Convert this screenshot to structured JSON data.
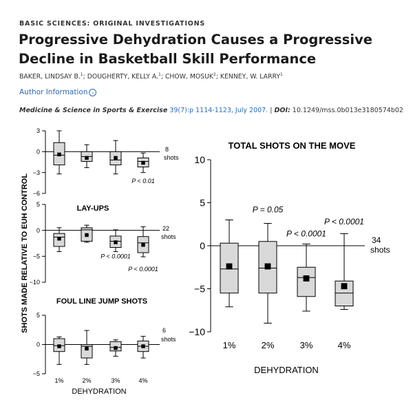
{
  "section_label": "BASIC SCIENCES: ORIGINAL INVESTIGATIONS",
  "title": "Progressive Dehydration Causes a Progressive Decline in Basketball Skill Performance",
  "authors": {
    "a1": "BAKER, LINDSAY B.",
    "a1_sup": "1",
    "sep1": "; ",
    "a2": "DOUGHERTY, KELLY A.",
    "a2_sup": "1",
    "sep2": "; ",
    "a3": "CHOW, MOSUK",
    "a3_sup": "2",
    "sep3": "; ",
    "a4": "KENNEY, W. LARRY",
    "a4_sup": "1"
  },
  "author_info_label": "Author Information",
  "citation": {
    "journal": "Medicine & Science in Sports & Exercise",
    "volume": "39(7):p 1114-1123, July 2007.",
    "sep": " | ",
    "doi_label": "DOI:",
    "doi": " 10.1249/mss.0b013e3180574b02"
  },
  "colors": {
    "link": "#2a6bb8",
    "box_fill": "#d9d9d9"
  },
  "chart_data": [
    {
      "type": "boxplot",
      "title": "",
      "shot_count": "8",
      "shot_unit": "shots",
      "ylim": [
        -6,
        3
      ],
      "yticks": [
        "3",
        "0",
        "−3",
        "−6"
      ],
      "ytick_values": [
        3,
        0,
        -3,
        -6
      ],
      "categories": [
        "1%",
        "2%",
        "3%",
        "4%"
      ],
      "boxes": [
        {
          "whislo": -3.2,
          "q1": -1.9,
          "med": -0.5,
          "q3": 1.3,
          "whishi": 3.0,
          "mean": -0.4
        },
        {
          "whislo": -2.3,
          "q1": -1.4,
          "med": -0.7,
          "q3": 0.0,
          "whishi": 1.0,
          "mean": -0.9
        },
        {
          "whislo": -3.2,
          "q1": -1.9,
          "med": -1.2,
          "q3": 0.0,
          "whishi": 1.6,
          "mean": -0.9
        },
        {
          "whislo": -3.0,
          "q1": -2.2,
          "med": -1.4,
          "q3": -0.9,
          "whishi": -0.2,
          "mean": -1.6
        }
      ],
      "annotations": [
        {
          "text": "P < 0.01",
          "category": 3,
          "y": -4.5
        }
      ]
    },
    {
      "type": "boxplot",
      "title": "LAY-UPS",
      "shot_count": "22",
      "shot_unit": "shots",
      "ylim": [
        -10,
        5
      ],
      "yticks": [
        "5",
        "0",
        "−5",
        "−10"
      ],
      "ytick_values": [
        5,
        0,
        -5,
        -10
      ],
      "categories": [
        "1%",
        "2%",
        "3%",
        "4%"
      ],
      "boxes": [
        {
          "whislo": -4.1,
          "q1": -3.1,
          "med": -1.3,
          "q3": -0.6,
          "whishi": 0.5,
          "mean": -1.6
        },
        {
          "whislo": -2.3,
          "q1": -2.1,
          "med": 0.1,
          "q3": 0.5,
          "whishi": 1.0,
          "mean": -0.9
        },
        {
          "whislo": -4.1,
          "q1": -3.3,
          "med": -2.1,
          "q3": -1.1,
          "whishi": 0.1,
          "mean": -2.3
        },
        {
          "whislo": -5.1,
          "q1": -4.3,
          "med": -2.4,
          "q3": -1.2,
          "whishi": 0.7,
          "mean": -2.8
        }
      ],
      "annotations": [
        {
          "text": "P < 0.0001",
          "category": 2,
          "y": -5.4
        },
        {
          "text": "P < 0.0001",
          "category": 3,
          "y": -7.9
        }
      ]
    },
    {
      "type": "boxplot",
      "title": "FOUL LINE JUMP SHOTS",
      "shot_count": "6",
      "shot_unit": "shots",
      "ylim": [
        -5,
        5
      ],
      "yticks": [
        "5",
        "0",
        "−5"
      ],
      "ytick_values": [
        5,
        0,
        -5
      ],
      "categories": [
        "1%",
        "2%",
        "3%",
        "4%"
      ],
      "boxes": [
        {
          "whislo": -3.4,
          "q1": -1.2,
          "med": -0.2,
          "q3": 1.0,
          "whishi": 1.3,
          "mean": -0.3
        },
        {
          "whislo": -3.4,
          "q1": -2.3,
          "med": -0.3,
          "q3": 0.0,
          "whishi": 2.4,
          "mean": -0.7
        },
        {
          "whislo": -2.0,
          "q1": -1.1,
          "med": -0.5,
          "q3": 0.5,
          "whishi": 0.8,
          "mean": -0.6
        },
        {
          "whislo": -2.3,
          "q1": -1.2,
          "med": -0.3,
          "q3": 0.6,
          "whishi": 1.4,
          "mean": -0.3
        }
      ],
      "annotations": []
    },
    {
      "type": "boxplot",
      "title": "TOTAL SHOTS ON THE MOVE",
      "shot_count": "34",
      "shot_unit": "shots",
      "ylim": [
        -10,
        10
      ],
      "yticks": [
        "10",
        "5",
        "0",
        "−5",
        "−10"
      ],
      "ytick_values": [
        10,
        5,
        0,
        -5,
        -10
      ],
      "categories": [
        "1%",
        "2%",
        "3%",
        "4%"
      ],
      "boxes": [
        {
          "whislo": -7.1,
          "q1": -5.5,
          "med": -2.7,
          "q3": 0.3,
          "whishi": 3.0,
          "mean": -2.4
        },
        {
          "whislo": -9.0,
          "q1": -5.5,
          "med": -2.6,
          "q3": 0.5,
          "whishi": 2.6,
          "mean": -2.4
        },
        {
          "whislo": -7.6,
          "q1": -5.9,
          "med": -3.7,
          "q3": -2.5,
          "whishi": 0.2,
          "mean": -3.8
        },
        {
          "whislo": -7.4,
          "q1": -7.0,
          "med": -5.5,
          "q3": -4.1,
          "whishi": 1.4,
          "mean": -4.7
        }
      ],
      "annotations": [
        {
          "text": "P = 0.05",
          "category": 1,
          "y": 3.9
        },
        {
          "text": "P < 0.0001",
          "category": 2,
          "y": 1.1
        },
        {
          "text": "P < 0.0001",
          "category": 3,
          "y": 2.5
        }
      ],
      "xlabel": "DEHYDRATION"
    }
  ],
  "figure": {
    "shared_ylabel": "SHOTS MADE RELATIVE TO EUH CONTROL",
    "left_xlabel": "DEHYDRATION"
  }
}
